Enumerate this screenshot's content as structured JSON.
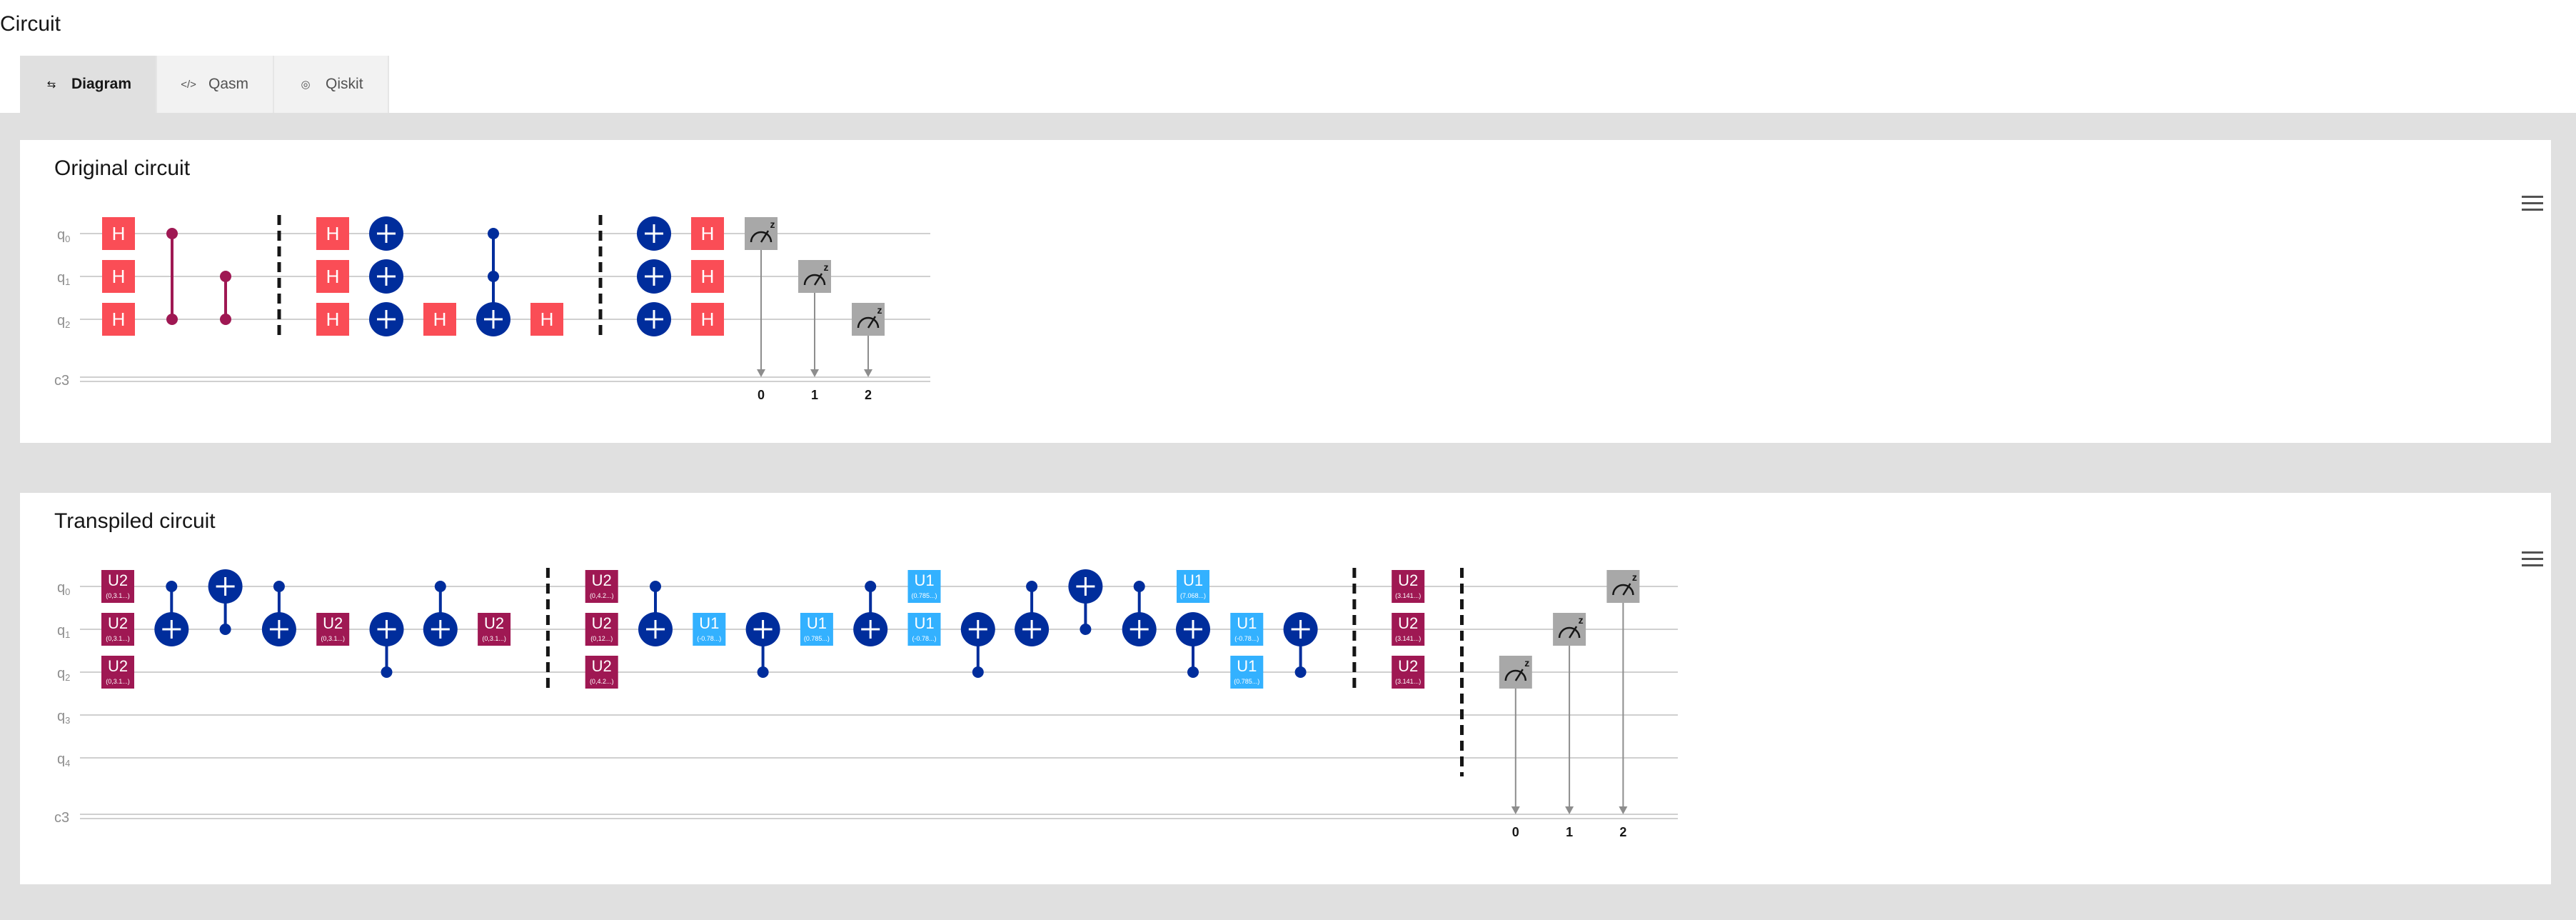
{
  "page": {
    "title": "Circuit"
  },
  "tabs": [
    {
      "label": "Diagram",
      "icon": "sliders-icon",
      "active": true
    },
    {
      "label": "Qasm",
      "icon": "code-icon",
      "active": false
    },
    {
      "label": "Qiskit",
      "icon": "qiskit-icon",
      "active": false
    }
  ],
  "colors": {
    "h_gate": "#fa4d56",
    "cx_gate": "#002d9c",
    "cz_gate": "#9f1853",
    "u2_gate": "#9f1853",
    "u1_gate": "#33b1ff",
    "measure": "#a8a8a8",
    "barrier": "#161616",
    "wire": "#d0d0d0"
  },
  "original": {
    "title": "Original circuit",
    "qubits": [
      "q0",
      "q1",
      "q2"
    ],
    "creg": "c3",
    "menu_icon": "overflow-menu-icon",
    "gates": [
      {
        "t": "H",
        "q": 0,
        "col": 1
      },
      {
        "t": "H",
        "q": 1,
        "col": 1
      },
      {
        "t": "H",
        "q": 2,
        "col": 1
      },
      {
        "t": "CZ",
        "q": [
          0,
          2
        ],
        "col": 2
      },
      {
        "t": "CZ",
        "q": [
          1,
          2
        ],
        "col": 3
      },
      {
        "t": "B",
        "col": 4
      },
      {
        "t": "H",
        "q": 0,
        "col": 5
      },
      {
        "t": "H",
        "q": 1,
        "col": 5
      },
      {
        "t": "H",
        "q": 2,
        "col": 5
      },
      {
        "t": "X",
        "q": 0,
        "col": 6
      },
      {
        "t": "X",
        "q": 1,
        "col": 6
      },
      {
        "t": "X",
        "q": 2,
        "col": 6
      },
      {
        "t": "H",
        "q": 2,
        "col": 7
      },
      {
        "t": "CCX",
        "c": [
          0,
          1
        ],
        "tq": 2,
        "col": 8
      },
      {
        "t": "H",
        "q": 2,
        "col": 9
      },
      {
        "t": "B",
        "col": 10
      },
      {
        "t": "X",
        "q": 0,
        "col": 11
      },
      {
        "t": "X",
        "q": 1,
        "col": 11
      },
      {
        "t": "X",
        "q": 2,
        "col": 11
      },
      {
        "t": "H",
        "q": 0,
        "col": 12
      },
      {
        "t": "H",
        "q": 1,
        "col": 12
      },
      {
        "t": "H",
        "q": 2,
        "col": 12
      },
      {
        "t": "M",
        "q": 0,
        "bit": "0",
        "col": 13
      },
      {
        "t": "M",
        "q": 1,
        "bit": "1",
        "col": 14
      },
      {
        "t": "M",
        "q": 2,
        "bit": "2",
        "col": 15
      }
    ]
  },
  "transpiled": {
    "title": "Transpiled circuit",
    "qubits": [
      "q0",
      "q1",
      "q2",
      "q3",
      "q4"
    ],
    "creg": "c3",
    "menu_icon": "overflow-menu-icon",
    "gates": [
      {
        "t": "U2",
        "q": 0,
        "p": "(0,3.1...)",
        "col": 1
      },
      {
        "t": "U2",
        "q": 1,
        "p": "(0,3.1...)",
        "col": 1
      },
      {
        "t": "U2",
        "q": 2,
        "p": "(0,3.1...)",
        "col": 1
      },
      {
        "t": "CX",
        "c": 0,
        "tq": 1,
        "col": 2
      },
      {
        "t": "CX",
        "c": 1,
        "tq": 0,
        "col": 3
      },
      {
        "t": "CX",
        "c": 0,
        "tq": 1,
        "col": 4
      },
      {
        "t": "U2",
        "q": 1,
        "p": "(0,3.1...)",
        "col": 5
      },
      {
        "t": "CX",
        "c": 2,
        "tq": 1,
        "col": 6
      },
      {
        "t": "CX",
        "c": 0,
        "tq": 1,
        "col": 7
      },
      {
        "t": "U2",
        "q": 1,
        "p": "(0,3.1...)",
        "col": 8
      },
      {
        "t": "B",
        "q": [
          0,
          2
        ],
        "col": 9
      },
      {
        "t": "U2",
        "q": 0,
        "p": "(0,4.2...)",
        "col": 10
      },
      {
        "t": "U2",
        "q": 1,
        "p": "(0,12...)",
        "col": 10
      },
      {
        "t": "U2",
        "q": 2,
        "p": "(0,4.2...)",
        "col": 10
      },
      {
        "t": "CX",
        "c": 0,
        "tq": 1,
        "col": 11
      },
      {
        "t": "U1",
        "q": 1,
        "p": "(-0.78...)",
        "col": 12
      },
      {
        "t": "CX",
        "c": 2,
        "tq": 1,
        "col": 13
      },
      {
        "t": "U1",
        "q": 1,
        "p": "(0.785...)",
        "col": 14
      },
      {
        "t": "CX",
        "c": 0,
        "tq": 1,
        "col": 15
      },
      {
        "t": "U1",
        "q": 0,
        "p": "(0.785...)",
        "col": 16
      },
      {
        "t": "U1",
        "q": 1,
        "p": "(-0.78...)",
        "col": 16
      },
      {
        "t": "CX",
        "c": 2,
        "tq": 1,
        "col": 17
      },
      {
        "t": "CX",
        "c": 0,
        "tq": 1,
        "col": 18
      },
      {
        "t": "CX",
        "c": 1,
        "tq": 0,
        "col": 19
      },
      {
        "t": "CX",
        "c": 0,
        "tq": 1,
        "col": 20
      },
      {
        "t": "U1",
        "q": 0,
        "p": "(7.068...)",
        "col": 21
      },
      {
        "t": "CX",
        "c": 2,
        "tq": 1,
        "col": 21
      },
      {
        "t": "U1",
        "q": 1,
        "p": "(-0.78...)",
        "col": 22
      },
      {
        "t": "U1",
        "q": 2,
        "p": "(0.785...)",
        "col": 22
      },
      {
        "t": "CX",
        "c": 2,
        "tq": 1,
        "col": 23
      },
      {
        "t": "B",
        "q": [
          0,
          2
        ],
        "col": 24
      },
      {
        "t": "U2",
        "q": 0,
        "p": "(3.141...)",
        "col": 25
      },
      {
        "t": "U2",
        "q": 1,
        "p": "(3.141...)",
        "col": 25
      },
      {
        "t": "U2",
        "q": 2,
        "p": "(3.141...)",
        "col": 25
      },
      {
        "t": "B",
        "q": [
          0,
          4
        ],
        "col": 26
      },
      {
        "t": "M",
        "q": 2,
        "bit": "0",
        "col": 27
      },
      {
        "t": "M",
        "q": 1,
        "bit": "1",
        "col": 28
      },
      {
        "t": "M",
        "q": 0,
        "bit": "2",
        "col": 29
      }
    ]
  }
}
